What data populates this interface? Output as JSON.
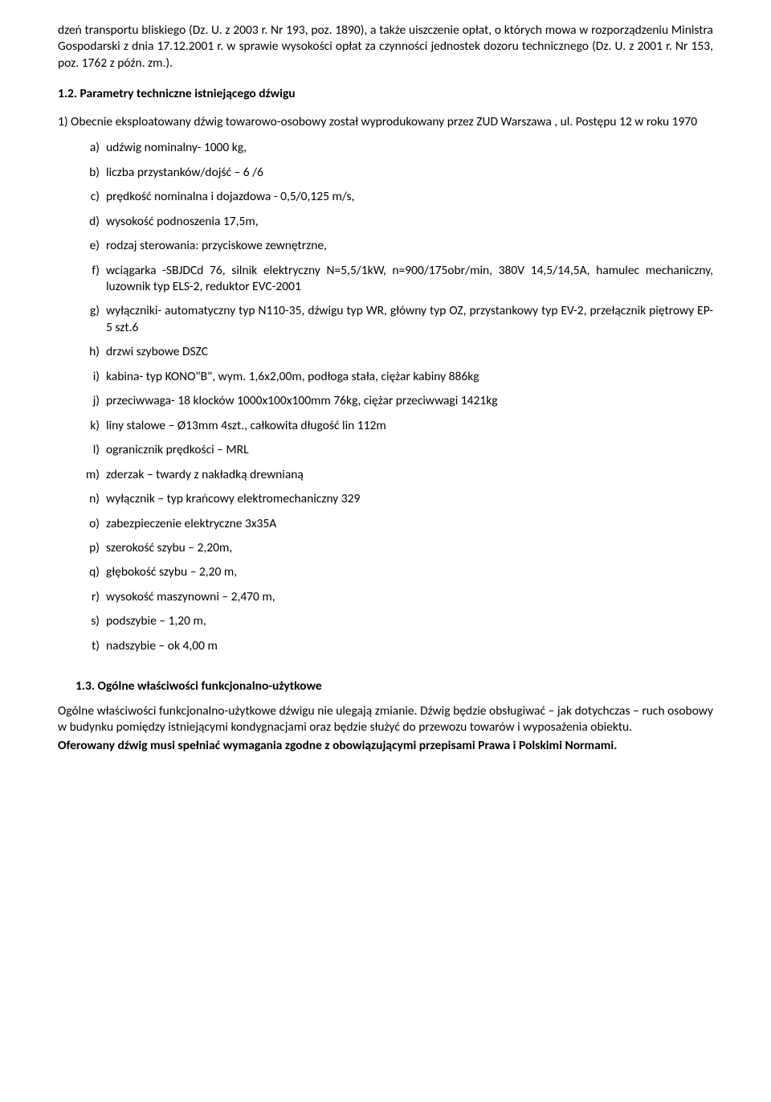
{
  "p1": "dzeń transportu bliskiego (Dz. U. z 2003 r. Nr 193, poz. 1890), a także uiszczenie opłat, o których mowa w rozporządzeniu Ministra Gospodarski z dnia 17.12.2001 r. w sprawie wysokości opłat za czynności jednostek dozoru technicznego (Dz. U. z 2001 r. Nr 153, poz. 1762 z późn. zm.).",
  "sec12_head": "1.2. Parametry techniczne istniejącego dźwigu",
  "sec12_intro": "1) Obecnie eksploatowany dźwig towarowo-osobowy został wyprodukowany przez ZUD Warszawa , ul. Postępu 12 w roku 1970",
  "items": [
    {
      "m": "a)",
      "t": "udźwig nominalny- 1000 kg,"
    },
    {
      "m": "b)",
      "t": "liczba przystanków/dojść – 6 /6"
    },
    {
      "m": "c)",
      "t": "prędkość nominalna i dojazdowa  -  0,5/0,125 m/s,"
    },
    {
      "m": "d)",
      "t": "wysokość podnoszenia 17,5m,"
    },
    {
      "m": "e)",
      "t": "rodzaj sterowania: przyciskowe zewnętrzne,"
    },
    {
      "m": "f)",
      "t": "wciągarka -SBJDCd 76, silnik elektryczny N=5,5/1kW, n=900/175obr/min, 380V 14,5/14,5A, hamulec mechaniczny, luzownik typ ELS-2, reduktor EVC-2001"
    },
    {
      "m": "g)",
      "t": "wyłączniki- automatyczny typ N110-35, dźwigu typ WR, główny typ OZ, przystankowy typ EV-2, przełącznik piętrowy EP-5 szt.6"
    },
    {
      "m": "h)",
      "t": "drzwi szybowe DSZC"
    },
    {
      "m": "i)",
      "t": "kabina- typ KONO\"B\", wym. 1,6x2,00m, podłoga stała, ciężar kabiny 886kg"
    },
    {
      "m": "j)",
      "t": "przeciwwaga- 18 klocków 1000x100x100mm 76kg, ciężar przeciwwagi 1421kg"
    },
    {
      "m": "k)",
      "t": "liny stalowe – Ø13mm 4szt., całkowita długość lin 112m"
    },
    {
      "m": "l)",
      "t": "ogranicznik prędkości – MRL"
    },
    {
      "m": "m)",
      "t": "zderzak – twardy z nakładką drewnianą"
    },
    {
      "m": "n)",
      "t": "wyłącznik – typ krańcowy elektromechaniczny 329"
    },
    {
      "m": "o)",
      "t": "zabezpieczenie elektryczne 3x35A"
    },
    {
      "m": "p)",
      "t": "szerokość szybu – 2,20m,"
    },
    {
      "m": "q)",
      "t": "głębokość szybu –  2,20 m,"
    },
    {
      "m": "r)",
      "t": "wysokość maszynowni  – 2,470 m,"
    },
    {
      "m": "s)",
      "t": "podszybie – 1,20 m,"
    },
    {
      "m": "t)",
      "t": "nadszybie – ok 4,00 m"
    }
  ],
  "sec13_head": "1.3. Ogólne właściwości funkcjonalno-użytkowe",
  "sec13_p1": "Ogólne właściwości funkcjonalno-użytkowe dźwigu nie ulegają zmianie. Dźwig będzie obsługiwać – jak dotychczas – ruch osobowy w budynku pomiędzy istniejącymi kondygnacjami oraz będzie służyć do przewozu towarów i wyposażenia obiektu.",
  "sec13_p2": "Oferowany dźwig musi spełniać wymagania zgodne z obowiązującymi przepisami Prawa i Polskimi Normami."
}
